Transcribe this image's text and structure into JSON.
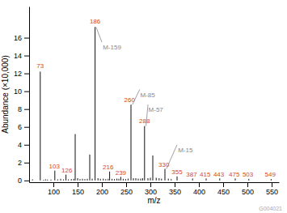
{
  "chart_data": {
    "type": "bar",
    "x_label": "m/z",
    "y_label": "Abundance (×10,000)",
    "footnote": "G004021",
    "color": "#111111",
    "grid": false,
    "x": [
      57,
      73,
      80,
      84,
      88,
      95,
      103,
      109,
      115,
      121,
      126,
      131,
      137,
      142,
      145,
      150,
      155,
      160,
      165,
      170,
      175,
      180,
      186,
      192,
      197,
      203,
      208,
      213,
      216,
      221,
      226,
      231,
      235,
      239,
      244,
      249,
      254,
      260,
      265,
      270,
      275,
      280,
      284,
      288,
      295,
      300,
      305,
      312,
      318,
      323,
      330,
      337,
      343,
      355,
      387,
      415,
      443,
      475,
      503,
      549
    ],
    "values": [
      0.12,
      12.2,
      0.08,
      0.12,
      0.1,
      0.1,
      1.1,
      0.12,
      0.18,
      0.12,
      0.65,
      0.12,
      0.15,
      0.18,
      5.2,
      0.25,
      0.15,
      0.18,
      0.15,
      0.18,
      2.9,
      0.2,
      17.2,
      0.25,
      0.18,
      0.2,
      0.15,
      0.18,
      1.0,
      0.18,
      0.15,
      0.2,
      0.18,
      0.4,
      0.18,
      0.15,
      0.2,
      8.5,
      0.25,
      0.25,
      0.2,
      0.2,
      0.25,
      6.1,
      0.25,
      0.3,
      2.8,
      0.3,
      0.25,
      0.2,
      1.3,
      0.2,
      0.15,
      0.45,
      0.22,
      0.22,
      0.22,
      0.22,
      0.18,
      0.15
    ],
    "xlim": [
      50,
      565
    ],
    "xticks": [
      100,
      150,
      200,
      250,
      300,
      350,
      400,
      450,
      500,
      550
    ],
    "ylim": [
      -0.2,
      19.5
    ],
    "yticks": [
      0,
      2,
      4,
      6,
      8,
      10,
      12,
      14,
      16
    ],
    "annotations": [
      {
        "text": "73",
        "x": 73,
        "y": 12.5,
        "color": "#d44820"
      },
      {
        "text": "103",
        "x": 102,
        "y": 1.25,
        "color": "#d44820"
      },
      {
        "text": "126",
        "x": 128,
        "y": 0.78,
        "color": "#d44820"
      },
      {
        "text": "186",
        "x": 186,
        "y": 17.5,
        "color": "#d44820"
      },
      {
        "text": "216",
        "x": 213,
        "y": 1.15,
        "color": "#d44820"
      },
      {
        "text": "239",
        "x": 239,
        "y": 0.55,
        "color": "#d44820"
      },
      {
        "text": "260",
        "x": 257,
        "y": 8.7,
        "color": "#d44820"
      },
      {
        "text": "288",
        "x": 288,
        "y": 6.3,
        "color": "#d44820"
      },
      {
        "text": "330",
        "x": 328,
        "y": 1.45,
        "color": "#d44820"
      },
      {
        "text": "355",
        "x": 355,
        "y": 0.58,
        "color": "#d44820"
      },
      {
        "text": "387",
        "x": 385,
        "y": 0.38,
        "color": "#d44820"
      },
      {
        "text": "415",
        "x": 413,
        "y": 0.38,
        "color": "#d44820"
      },
      {
        "text": "443",
        "x": 441,
        "y": 0.38,
        "color": "#d44820"
      },
      {
        "text": "475",
        "x": 473,
        "y": 0.38,
        "color": "#d44820"
      },
      {
        "text": "503",
        "x": 501,
        "y": 0.34,
        "color": "#d44820"
      },
      {
        "text": "549",
        "x": 547,
        "y": 0.3,
        "color": "#d44820"
      },
      {
        "text": "M-159",
        "x": 202,
        "y": 15.2,
        "from": [
          200,
          15.5
        ],
        "to": [
          188,
          17.2
        ],
        "color": "#888888"
      },
      {
        "text": "M-85",
        "x": 279,
        "y": 9.9,
        "from": [
          278,
          10.2
        ],
        "to": [
          263,
          8.5
        ],
        "color": "#888888"
      },
      {
        "text": "M-57",
        "x": 296,
        "y": 8.2,
        "from": [
          295,
          8.5
        ],
        "to": [
          291,
          6.1
        ],
        "color": "#888888"
      },
      {
        "text": "M-15",
        "x": 357,
        "y": 3.7,
        "from": [
          355,
          4.0
        ],
        "to": [
          333,
          1.3
        ],
        "color": "#888888"
      }
    ]
  }
}
